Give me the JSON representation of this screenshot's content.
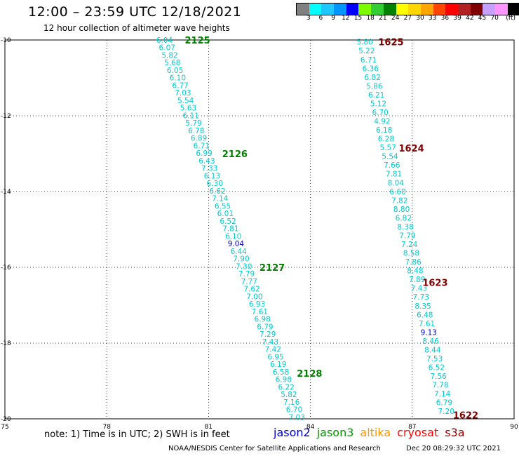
{
  "header": {
    "title": "12:00 – 23:59 UTC 12/18/2021",
    "subtitle": "12 hour collection of altimeter wave heights"
  },
  "legend_colorbar": {
    "unit_label": "(ft)",
    "levels": [
      {
        "label": "",
        "color": "#808080"
      },
      {
        "label": "3",
        "color": "#00ffff"
      },
      {
        "label": "6",
        "color": "#1ec8ff"
      },
      {
        "label": "9",
        "color": "#0096ff"
      },
      {
        "label": "12",
        "color": "#0000ff"
      },
      {
        "label": "15",
        "color": "#7cfc00"
      },
      {
        "label": "18",
        "color": "#32cd32"
      },
      {
        "label": "21",
        "color": "#008000"
      },
      {
        "label": "24",
        "color": "#ffff00"
      },
      {
        "label": "27",
        "color": "#ffd700"
      },
      {
        "label": "30",
        "color": "#ffa500"
      },
      {
        "label": "33",
        "color": "#ff4500"
      },
      {
        "label": "36",
        "color": "#ff0000"
      },
      {
        "label": "39",
        "color": "#b22222"
      },
      {
        "label": "42",
        "color": "#800000"
      },
      {
        "label": "45",
        "color": "#c8a0ff"
      },
      {
        "label": "70",
        "color": "#ff96ff"
      },
      {
        "label": "",
        "color": "#000000"
      }
    ]
  },
  "map": {
    "lon_range": [
      75,
      90
    ],
    "lat_range": [
      -20,
      -10
    ],
    "lon_ticks": [
      "75",
      "78",
      "81",
      "84",
      "87",
      "90"
    ],
    "lat_ticks": [
      "-10",
      "-12",
      "-14",
      "-16",
      "-18",
      "-20"
    ],
    "grid": "dotted",
    "colors": {
      "cyan": "#00cccc",
      "blue": "#0000cc",
      "orbit_green": "#008000",
      "orbit_maroon": "#800000"
    },
    "orbit_labels": [
      {
        "text": "2125",
        "lon": 80.3,
        "lat": -10.0,
        "color": "#008000"
      },
      {
        "text": "2126",
        "lon": 81.4,
        "lat": -13.0,
        "color": "#008000"
      },
      {
        "text": "2127",
        "lon": 82.5,
        "lat": -16.0,
        "color": "#008000"
      },
      {
        "text": "2128",
        "lon": 83.6,
        "lat": -18.8,
        "color": "#008000"
      },
      {
        "text": "1625",
        "lon": 86.0,
        "lat": -10.05,
        "color": "#800000"
      },
      {
        "text": "1624",
        "lon": 86.6,
        "lat": -12.85,
        "color": "#800000"
      },
      {
        "text": "1623",
        "lon": 87.3,
        "lat": -16.4,
        "color": "#800000"
      },
      {
        "text": "1622",
        "lon": 88.2,
        "lat": -19.9,
        "color": "#800000"
      }
    ],
    "tracks": [
      {
        "name": "jason3",
        "start": {
          "lon": 79.7,
          "lat": -10.0
        },
        "end": {
          "lon": 83.6,
          "lat": -19.95
        },
        "values": [
          "6.04",
          "6.07",
          "5.82",
          "5.68",
          "6.05",
          "6.10",
          "6.77",
          "7.03",
          "5.54",
          "5.63",
          "6.11",
          "5.79",
          "6.78",
          "6.89",
          "6.71",
          "6.99",
          "6.43",
          "7.33",
          "6.13",
          "6.30",
          "6.62",
          "7.14",
          "6.55",
          "6.01",
          "6.52",
          "7.81",
          "6.10",
          "9.04",
          "6.44",
          "7.90",
          "7.30",
          "7.79",
          "7.77",
          "7.62",
          "7.00",
          "6.93",
          "7.61",
          "6.98",
          "6.79",
          "7.29",
          "7.43",
          "7.42",
          "6.95",
          "6.19",
          "6.58",
          "6.98",
          "6.22",
          "5.82",
          "7.16",
          "6.70",
          "7.03"
        ],
        "value_colors": {
          "9.04": "#0000cc"
        }
      },
      {
        "name": "s3a",
        "start": {
          "lon": 85.6,
          "lat": -10.05
        },
        "end": {
          "lon": 88.0,
          "lat": -19.8
        },
        "values": [
          "5.80",
          "5.22",
          "6.71",
          "6.36",
          "6.82",
          "5.86",
          "6.21",
          "5.12",
          "6.70",
          "4.92",
          "6.18",
          "6.28",
          "5.57",
          "5.54",
          "7.66",
          "7.81",
          "8.04",
          "6.60",
          "7.82",
          "8.80",
          "6.82",
          "8.38",
          "7.79",
          "7.24",
          "8.58",
          "7.86",
          "8.48",
          "7.89",
          "7.43",
          "7.73",
          "8.35",
          "6.48",
          "7.61",
          "9.13",
          "8.46",
          "8.44",
          "7.53",
          "6.52",
          "7.56",
          "7.78",
          "7.14",
          "6.79",
          "7.20"
        ],
        "value_colors": {
          "9.13": "#0000cc"
        }
      }
    ]
  },
  "footnote": "note: 1) Time is in UTC; 2) SWH is in feet",
  "satellite_legend": [
    {
      "name": "jason2",
      "color": "#0000cc"
    },
    {
      "name": "jason3",
      "color": "#009900"
    },
    {
      "name": "altika",
      "color": "#ff9900"
    },
    {
      "name": "cryosat",
      "color": "#ff0000"
    },
    {
      "name": "s3a",
      "color": "#990000"
    }
  ],
  "credit": "NOAA/NESDIS Center for Satellite Applications and Research",
  "timestamp": "Dec 20 08:29:32 UTC 2021"
}
